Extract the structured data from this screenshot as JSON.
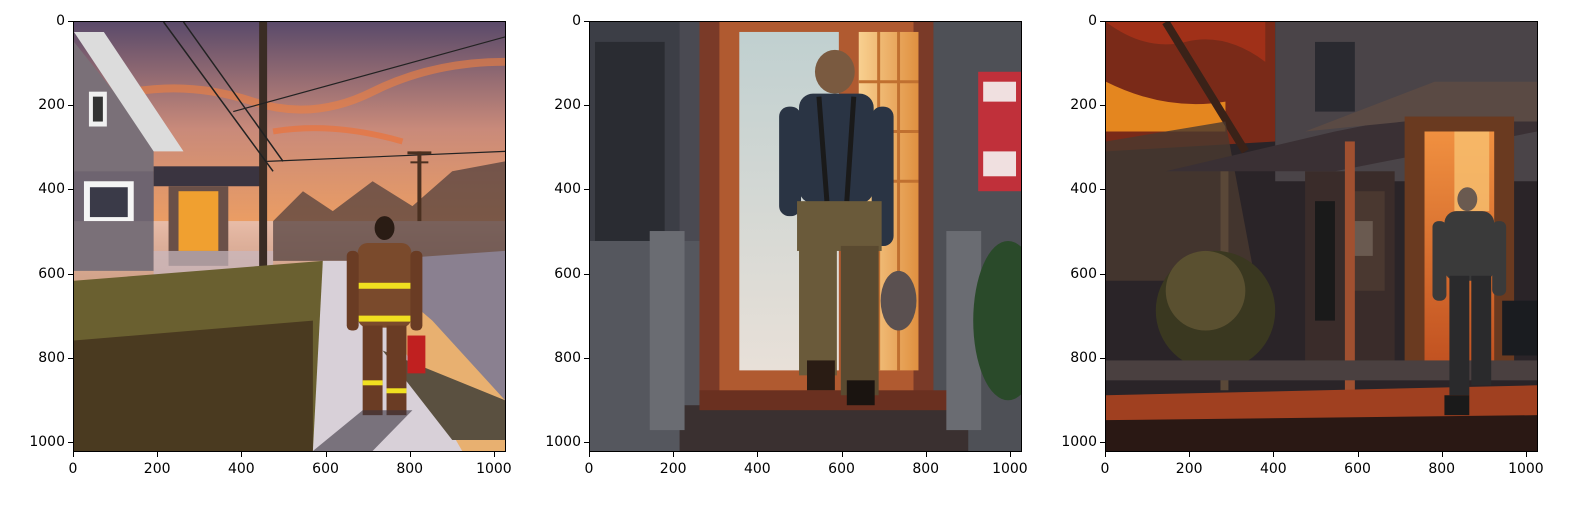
{
  "figure": {
    "panels": [
      {
        "image": "firefighter-walking-sidewalk-sunset",
        "x_ticks": [
          "0",
          "200",
          "400",
          "600",
          "800",
          "1000"
        ],
        "y_ticks": [
          "0",
          "200",
          "400",
          "600",
          "800",
          "1000"
        ]
      },
      {
        "image": "man-entering-doorway",
        "x_ticks": [
          "0",
          "200",
          "400",
          "600",
          "800",
          "1000"
        ],
        "y_ticks": [
          "0",
          "200",
          "400",
          "600",
          "800",
          "1000"
        ]
      },
      {
        "image": "man-walking-to-porch-at-dusk",
        "x_ticks": [
          "0",
          "200",
          "400",
          "600",
          "800",
          "1000"
        ],
        "y_ticks": [
          "0",
          "200",
          "400",
          "600",
          "800",
          "1000"
        ]
      }
    ],
    "axis_range": [
      0,
      1024
    ],
    "tick_values": [
      0,
      200,
      400,
      600,
      800,
      1000
    ]
  }
}
